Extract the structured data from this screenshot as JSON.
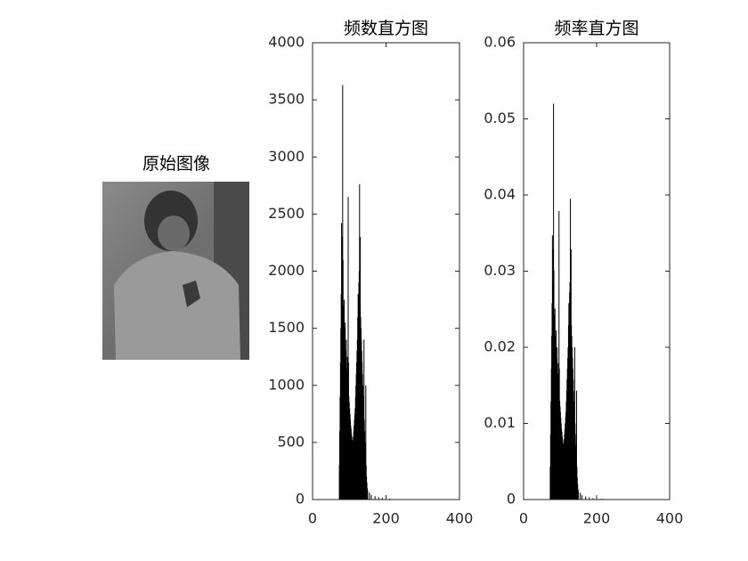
{
  "chart_data": [
    {
      "type": "image",
      "title": "原始图像"
    },
    {
      "type": "bar",
      "title": "频数直方图",
      "color": "#000000",
      "xlim": [
        0,
        400
      ],
      "xticks": [
        0,
        200,
        400
      ],
      "ylim": [
        0,
        4000
      ],
      "yticks": [
        0,
        500,
        1000,
        1500,
        2000,
        2500,
        3000,
        3500,
        4000
      ],
      "x": [
        73,
        74,
        75,
        76,
        77,
        78,
        79,
        80,
        81,
        82,
        83,
        84,
        85,
        86,
        87,
        88,
        89,
        90,
        91,
        92,
        93,
        94,
        95,
        96,
        97,
        98,
        99,
        100,
        101,
        102,
        103,
        104,
        105,
        106,
        107,
        108,
        109,
        110,
        111,
        112,
        113,
        114,
        115,
        116,
        117,
        118,
        119,
        120,
        121,
        122,
        123,
        124,
        125,
        126,
        127,
        128,
        129,
        130,
        131,
        132,
        133,
        134,
        135,
        136,
        137,
        138,
        139,
        140,
        141,
        142,
        143,
        144,
        145,
        146,
        147,
        148,
        149,
        150,
        155,
        160,
        170,
        180,
        190,
        200,
        210,
        216
      ],
      "values": [
        300,
        600,
        900,
        1200,
        1500,
        1800,
        2420,
        2000,
        2300,
        3630,
        2100,
        1700,
        1600,
        1750,
        1500,
        1400,
        1550,
        1300,
        1250,
        1400,
        1150,
        1100,
        1250,
        1000,
        2650,
        1200,
        900,
        850,
        800,
        750,
        700,
        650,
        620,
        580,
        550,
        520,
        500,
        520,
        550,
        600,
        650,
        700,
        750,
        800,
        900,
        1000,
        1100,
        1200,
        1300,
        1400,
        1600,
        1800,
        1500,
        1900,
        2000,
        2760,
        1700,
        2300,
        1600,
        1500,
        1400,
        1300,
        1200,
        1100,
        1000,
        900,
        800,
        1400,
        700,
        600,
        500,
        400,
        1000,
        300,
        200,
        150,
        100,
        80,
        60,
        40,
        30,
        20,
        15,
        10,
        8,
        5
      ]
    },
    {
      "type": "bar",
      "title": "频率直方图",
      "color": "#000000",
      "xlim": [
        0,
        400
      ],
      "xticks": [
        0,
        200,
        400
      ],
      "ylim": [
        0,
        0.06
      ],
      "yticks": [
        0,
        0.01,
        0.02,
        0.03,
        0.04,
        0.05,
        0.06
      ],
      "x": [
        73,
        74,
        75,
        76,
        77,
        78,
        79,
        80,
        81,
        82,
        83,
        84,
        85,
        86,
        87,
        88,
        89,
        90,
        91,
        92,
        93,
        94,
        95,
        96,
        97,
        98,
        99,
        100,
        101,
        102,
        103,
        104,
        105,
        106,
        107,
        108,
        109,
        110,
        111,
        112,
        113,
        114,
        115,
        116,
        117,
        118,
        119,
        120,
        121,
        122,
        123,
        124,
        125,
        126,
        127,
        128,
        129,
        130,
        131,
        132,
        133,
        134,
        135,
        136,
        137,
        138,
        139,
        140,
        141,
        142,
        143,
        144,
        145,
        146,
        147,
        148,
        149,
        150,
        155,
        160,
        170,
        180,
        190,
        200,
        210,
        216
      ],
      "values": [
        0.0043,
        0.0086,
        0.0129,
        0.0172,
        0.0215,
        0.0258,
        0.0347,
        0.0286,
        0.0329,
        0.052,
        0.0301,
        0.0243,
        0.0229,
        0.0251,
        0.0215,
        0.02,
        0.0222,
        0.0186,
        0.0179,
        0.02,
        0.0165,
        0.0158,
        0.0179,
        0.0143,
        0.0379,
        0.0172,
        0.0129,
        0.0122,
        0.0115,
        0.0107,
        0.01,
        0.0093,
        0.0089,
        0.0083,
        0.0079,
        0.0074,
        0.0072,
        0.0074,
        0.0079,
        0.0086,
        0.0093,
        0.01,
        0.0107,
        0.0115,
        0.0129,
        0.0143,
        0.0158,
        0.0172,
        0.0186,
        0.02,
        0.0229,
        0.0258,
        0.0215,
        0.0272,
        0.0286,
        0.0395,
        0.0243,
        0.0329,
        0.0229,
        0.0215,
        0.02,
        0.0186,
        0.0172,
        0.0158,
        0.0143,
        0.0129,
        0.0115,
        0.02,
        0.01,
        0.0086,
        0.0072,
        0.0057,
        0.0143,
        0.0043,
        0.0029,
        0.0021,
        0.0014,
        0.0011,
        0.0009,
        0.0006,
        0.0004,
        0.0003,
        0.0002,
        0.0001,
        0.0001,
        0.0001
      ]
    }
  ]
}
